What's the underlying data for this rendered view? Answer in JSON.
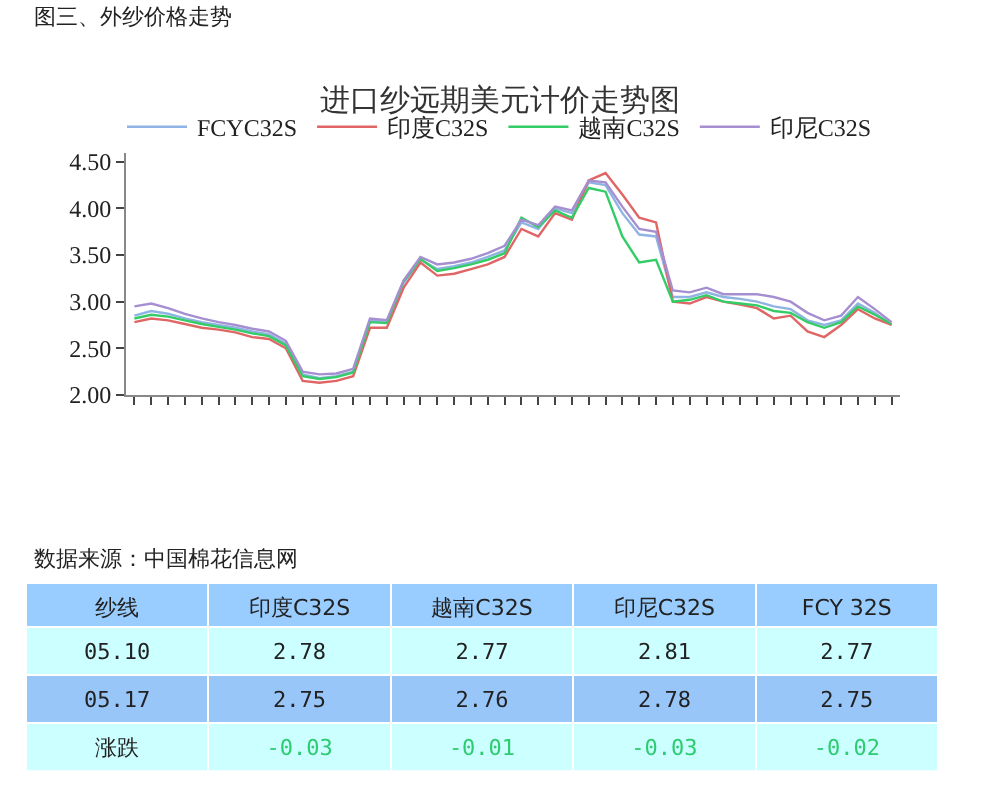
{
  "chart_data": [
    {
      "type": "line",
      "title": "进口纱远期美元计价走势图",
      "annotations": [
        "图三、外纱价格走势",
        "数据来源：中国棉花信息网"
      ],
      "categories": [
        null,
        null,
        null,
        null,
        null,
        null,
        null,
        null,
        null,
        null,
        null,
        null,
        null,
        null,
        null,
        null,
        null,
        null,
        null,
        null,
        null,
        null,
        null,
        null,
        null,
        null,
        null,
        null,
        null,
        null,
        null,
        null,
        null,
        null,
        null,
        null,
        null,
        null,
        null,
        null,
        null,
        null,
        null,
        null,
        null,
        null
      ],
      "series": [
        {
          "name": "FCYC32S",
          "color": "#8fb4e3",
          "values": [
            2.85,
            2.9,
            2.87,
            2.82,
            2.78,
            2.75,
            2.72,
            2.68,
            2.65,
            2.55,
            2.22,
            2.18,
            2.2,
            2.25,
            2.8,
            2.78,
            3.2,
            3.45,
            3.35,
            3.38,
            3.42,
            3.48,
            3.55,
            3.85,
            3.78,
            4.0,
            3.95,
            4.28,
            4.25,
            3.95,
            3.72,
            3.7,
            3.05,
            3.05,
            3.1,
            3.05,
            3.03,
            3.0,
            2.95,
            2.92,
            2.8,
            2.75,
            2.8,
            2.98,
            2.88,
            2.75
          ]
        },
        {
          "name": "印度C32S",
          "color": "#e06666",
          "values": [
            2.78,
            2.82,
            2.8,
            2.76,
            2.72,
            2.7,
            2.67,
            2.62,
            2.6,
            2.5,
            2.15,
            2.13,
            2.15,
            2.2,
            2.72,
            2.72,
            3.15,
            3.42,
            3.28,
            3.3,
            3.35,
            3.4,
            3.48,
            3.78,
            3.7,
            3.95,
            3.88,
            4.3,
            4.38,
            4.15,
            3.9,
            3.85,
            3.0,
            2.98,
            3.05,
            3.0,
            2.97,
            2.93,
            2.82,
            2.85,
            2.68,
            2.62,
            2.75,
            2.92,
            2.82,
            2.75
          ]
        },
        {
          "name": "越南C32S",
          "color": "#33cc66",
          "values": [
            2.82,
            2.86,
            2.84,
            2.8,
            2.76,
            2.73,
            2.7,
            2.66,
            2.63,
            2.53,
            2.2,
            2.17,
            2.19,
            2.24,
            2.78,
            2.77,
            3.22,
            3.46,
            3.33,
            3.36,
            3.4,
            3.45,
            3.52,
            3.9,
            3.8,
            3.98,
            3.9,
            4.22,
            4.18,
            3.7,
            3.42,
            3.45,
            3.0,
            3.02,
            3.07,
            3.0,
            2.98,
            2.96,
            2.9,
            2.88,
            2.78,
            2.72,
            2.78,
            2.95,
            2.86,
            2.76
          ]
        },
        {
          "name": "印尼C32S",
          "color": "#a68fd0",
          "values": [
            2.95,
            2.98,
            2.93,
            2.87,
            2.82,
            2.78,
            2.75,
            2.71,
            2.68,
            2.58,
            2.25,
            2.22,
            2.23,
            2.28,
            2.82,
            2.8,
            3.23,
            3.48,
            3.4,
            3.42,
            3.46,
            3.52,
            3.6,
            3.88,
            3.82,
            4.02,
            3.98,
            4.3,
            4.28,
            4.02,
            3.78,
            3.75,
            3.12,
            3.1,
            3.15,
            3.08,
            3.08,
            3.08,
            3.05,
            3.0,
            2.88,
            2.8,
            2.85,
            3.05,
            2.92,
            2.78
          ]
        }
      ],
      "ylim": [
        2.0,
        4.6
      ],
      "yticks": [
        {
          "value": 2.0,
          "label": "2.00"
        },
        {
          "value": 2.5,
          "label": "2.50"
        },
        {
          "value": 3.0,
          "label": "3.00"
        },
        {
          "value": 3.5,
          "label": "3.50"
        },
        {
          "value": 4.0,
          "label": "4.00"
        },
        {
          "value": 4.5,
          "label": "4.50"
        }
      ],
      "tick_labels": "y",
      "legend": "top",
      "marker": "none",
      "line_style": "solid"
    },
    {
      "type": "other",
      "categories": [
        "纱线",
        "印度C32S",
        "越南C32S",
        "印尼C32S",
        "FCY 32S"
      ],
      "y_categories": [
        "05.10",
        "05.17",
        "涨跌"
      ],
      "cell_labels": [
        [
          "2.78",
          "2.77",
          "2.81",
          "2.77"
        ],
        [
          "2.75",
          "2.76",
          "2.78",
          "2.75"
        ],
        [
          "-0.03",
          "-0.01",
          "-0.03",
          "-0.02"
        ]
      ]
    }
  ]
}
